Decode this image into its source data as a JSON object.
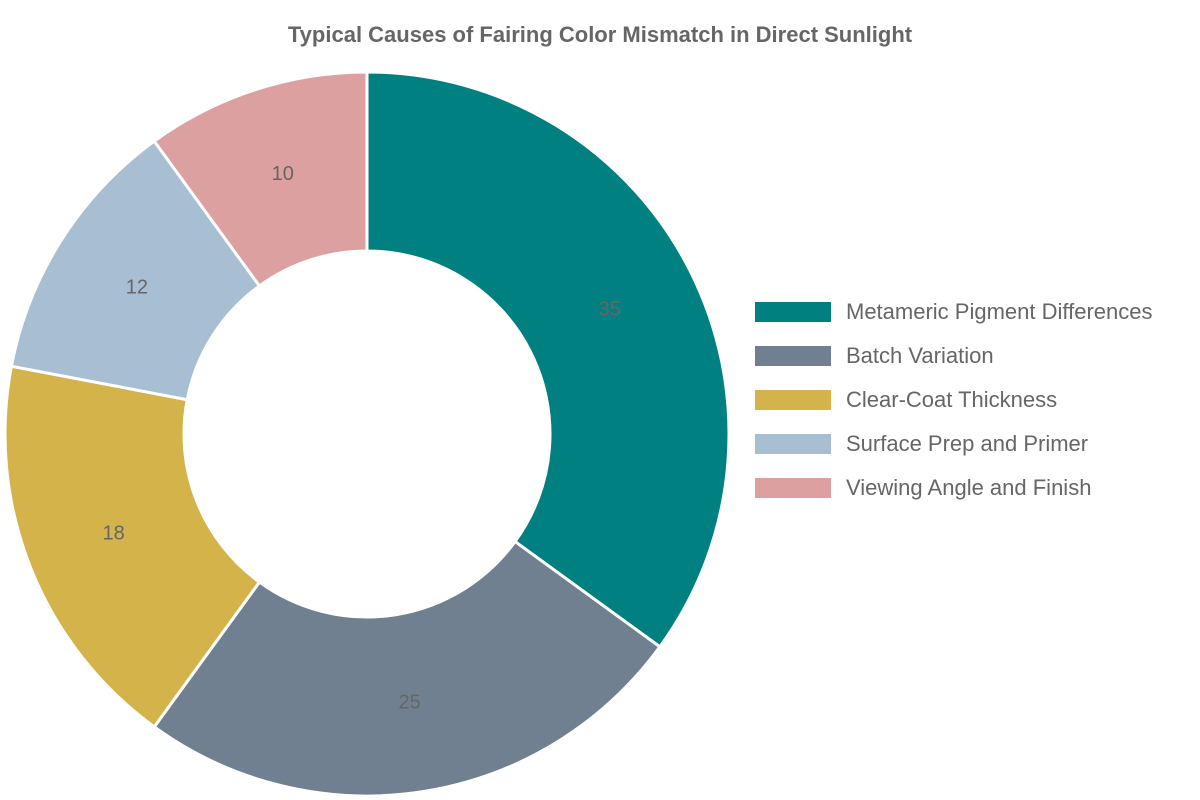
{
  "chart_data": {
    "type": "pie",
    "donut": true,
    "title": "Typical Causes of Fairing Color Mismatch in Direct Sunlight",
    "categories": [
      "Metameric Pigment Differences",
      "Batch Variation",
      "Clear-Coat Thickness",
      "Surface Prep and Primer",
      "Viewing Angle and Finish"
    ],
    "values": [
      35,
      25,
      18,
      12,
      10
    ],
    "data_labels": [
      "35",
      "25",
      "18",
      "12",
      "10"
    ],
    "colors": [
      "#008080",
      "#708090",
      "#D4B44A",
      "#A7BED3",
      "#DDA0A0"
    ],
    "legend_position": "right"
  }
}
